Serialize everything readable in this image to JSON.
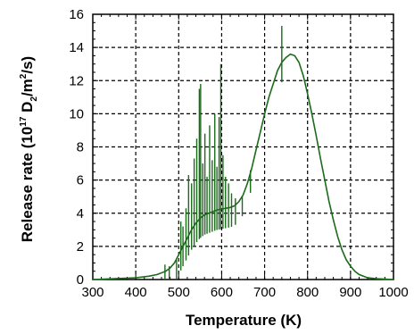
{
  "chart_data": {
    "type": "line",
    "xlabel": "Temperature (K)",
    "ylabel_prefix": "Release rate (10",
    "ylabel_exp1": "17",
    "ylabel_mid": " D",
    "ylabel_sub": "2",
    "ylabel_unit": "/m",
    "ylabel_exp2": "2",
    "ylabel_suffix": "/s)",
    "xlim": [
      300,
      1000
    ],
    "ylim": [
      0,
      16
    ],
    "xticks": [
      "300",
      "400",
      "500",
      "600",
      "700",
      "800",
      "900",
      "1000"
    ],
    "yticks": [
      "0",
      "2",
      "4",
      "6",
      "8",
      "10",
      "12",
      "14",
      "16"
    ],
    "grid": "dashed",
    "line_color": "#1a6b1a",
    "series": [
      {
        "x": [
          300,
          350,
          400,
          430,
          450,
          470,
          480,
          490,
          500,
          510,
          520,
          530,
          540,
          550,
          560,
          570,
          580,
          590,
          600,
          610,
          620,
          630,
          640,
          650,
          660,
          670,
          680,
          690,
          700,
          710,
          720,
          730,
          740,
          750,
          760,
          770,
          780,
          790,
          800,
          810,
          820,
          830,
          840,
          850,
          860,
          870,
          880,
          890,
          900,
          910,
          920,
          940,
          960,
          980,
          1000
        ],
        "y": [
          0,
          0.05,
          0.1,
          0.2,
          0.3,
          0.5,
          0.7,
          1.0,
          1.5,
          2.0,
          2.5,
          3.0,
          3.4,
          3.7,
          3.9,
          4.0,
          4.1,
          4.2,
          4.25,
          4.3,
          4.35,
          4.45,
          4.7,
          5.1,
          5.8,
          6.7,
          7.8,
          8.9,
          10.0,
          11.0,
          11.8,
          12.6,
          13.1,
          13.4,
          13.6,
          13.5,
          13.1,
          12.3,
          11.2,
          10.0,
          8.7,
          7.3,
          6.0,
          4.7,
          3.6,
          2.6,
          1.8,
          1.2,
          0.8,
          0.5,
          0.3,
          0.1,
          0.05,
          0.02,
          0
        ]
      }
    ],
    "spikes": [
      {
        "x": 468,
        "y": 0.9
      },
      {
        "x": 478,
        "y": 0.8
      },
      {
        "x": 495,
        "y": 1.2
      },
      {
        "x": 505,
        "y": 3.5
      },
      {
        "x": 510,
        "y": 3.2
      },
      {
        "x": 517,
        "y": 4.3
      },
      {
        "x": 523,
        "y": 6.3
      },
      {
        "x": 530,
        "y": 5.8
      },
      {
        "x": 536,
        "y": 7.3
      },
      {
        "x": 542,
        "y": 8.5
      },
      {
        "x": 548,
        "y": 11.5
      },
      {
        "x": 551,
        "y": 11.8
      },
      {
        "x": 556,
        "y": 7.0
      },
      {
        "x": 561,
        "y": 8.8
      },
      {
        "x": 566,
        "y": 6.2
      },
      {
        "x": 572,
        "y": 9.3
      },
      {
        "x": 578,
        "y": 7.2
      },
      {
        "x": 584,
        "y": 10.0
      },
      {
        "x": 589,
        "y": 6.8
      },
      {
        "x": 594,
        "y": 9.8
      },
      {
        "x": 598,
        "y": 13.0
      },
      {
        "x": 603,
        "y": 7.5
      },
      {
        "x": 609,
        "y": 6.2
      },
      {
        "x": 616,
        "y": 5.8
      },
      {
        "x": 623,
        "y": 5.2
      },
      {
        "x": 632,
        "y": 4.9
      },
      {
        "x": 648,
        "y": 5.0
      },
      {
        "x": 667,
        "y": 6.6
      },
      {
        "x": 740,
        "y": 15.3
      }
    ]
  }
}
